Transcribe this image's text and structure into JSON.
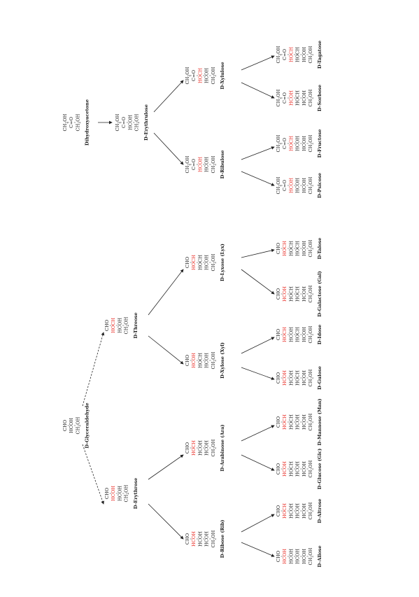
{
  "colors": {
    "text": "#1a1a1a",
    "highlight": "#e8241c",
    "arrow": "#222222"
  },
  "aldoses": {
    "glyceraldehyde": {
      "rows": [
        "CHO",
        "HCOH",
        "CH2OH"
      ],
      "red": [],
      "name": "D-Glyceraldehyde"
    },
    "erythrose": {
      "rows": [
        "CHO",
        "HCOH",
        "HCOH",
        "CH2OH"
      ],
      "red": [
        1
      ],
      "name": "D-Erythrose"
    },
    "threose": {
      "rows": [
        "CHO",
        "HOCH",
        "HCOH",
        "CH2OH"
      ],
      "red": [
        1
      ],
      "name": "D-Threose"
    },
    "ribose": {
      "rows": [
        "CHO",
        "HCOH",
        "HCOH",
        "HCOH",
        "CH2OH"
      ],
      "red": [
        1
      ],
      "name": "D-Ribose (Rib)"
    },
    "arabinose": {
      "rows": [
        "CHO",
        "HOCH",
        "HCOH",
        "HCOH",
        "CH2OH"
      ],
      "red": [
        1
      ],
      "name": "D-Arabinose (Ara)"
    },
    "xylose": {
      "rows": [
        "CHO",
        "HCOH",
        "HOCH",
        "HCOH",
        "CH2OH"
      ],
      "red": [
        1
      ],
      "name": "D-Xylose (Xyl)"
    },
    "lyxose": {
      "rows": [
        "CHO",
        "HOCH",
        "HOCH",
        "HCOH",
        "CH2OH"
      ],
      "red": [
        1
      ],
      "name": "D-Lyxose (Lyx)"
    },
    "allose": {
      "rows": [
        "CHO",
        "HCOH",
        "HCOH",
        "HCOH",
        "HCOH",
        "CH2OH"
      ],
      "red": [
        1
      ],
      "name": "D-Allose"
    },
    "altrose": {
      "rows": [
        "CHO",
        "HOCH",
        "HCOH",
        "HCOH",
        "HCOH",
        "CH2OH"
      ],
      "red": [
        1
      ],
      "name": "D-Altrose"
    },
    "glucose": {
      "rows": [
        "CHO",
        "HCOH",
        "HOCH",
        "HCOH",
        "HCOH",
        "CH2OH"
      ],
      "red": [
        1
      ],
      "name": "D-Glucose (Glc)"
    },
    "mannose": {
      "rows": [
        "CHO",
        "HOCH",
        "HOCH",
        "HCOH",
        "HCOH",
        "CH2OH"
      ],
      "red": [
        1
      ],
      "name": "D-Mannose (Man)"
    },
    "gulose": {
      "rows": [
        "CHO",
        "HCOH",
        "HCOH",
        "HOCH",
        "HCOH",
        "CH2OH"
      ],
      "red": [
        1
      ],
      "name": "D-Gulose"
    },
    "idose": {
      "rows": [
        "CHO",
        "HOCH",
        "HCOH",
        "HOCH",
        "HCOH",
        "CH2OH"
      ],
      "red": [
        1
      ],
      "name": "D-Idose"
    },
    "galactose": {
      "rows": [
        "CHO",
        "HCOH",
        "HOCH",
        "HOCH",
        "HCOH",
        "CH2OH"
      ],
      "red": [
        1
      ],
      "name": "D-Galactose (Gal)"
    },
    "talose": {
      "rows": [
        "CHO",
        "HOCH",
        "HOCH",
        "HOCH",
        "HCOH",
        "CH2OH"
      ],
      "red": [
        1
      ],
      "name": "D-Talose"
    }
  },
  "ketoses": {
    "dihydroxyacetone": {
      "rows": [
        "CH2OH",
        "C=O",
        "CH2OH"
      ],
      "red": [],
      "name": "Dihydroxyacetone"
    },
    "erythrulose": {
      "rows": [
        "CH2OH",
        "C=O",
        "HCOH",
        "CH2OH"
      ],
      "red": [],
      "name": "D-Erythrulose"
    },
    "ribulose": {
      "rows": [
        "CH2OH",
        "C=O",
        "HCOH",
        "HCOH",
        "CH2OH"
      ],
      "red": [
        2
      ],
      "name": "D-Ribulose"
    },
    "xylulose": {
      "rows": [
        "CH2OH",
        "C=O",
        "HOCH",
        "HCOH",
        "CH2OH"
      ],
      "red": [
        2
      ],
      "name": "D-Xylulose"
    },
    "psicose": {
      "rows": [
        "CH2OH",
        "C=O",
        "HCOH",
        "HCOH",
        "HCOH",
        "CH2OH"
      ],
      "red": [
        2
      ],
      "name": "D-Psicose"
    },
    "fructose": {
      "rows": [
        "CH2OH",
        "C=O",
        "HOCH",
        "HCOH",
        "HCOH",
        "CH2OH"
      ],
      "red": [
        2
      ],
      "name": "D-Fructose"
    },
    "sorbose": {
      "rows": [
        "CH2OH",
        "C=O",
        "HCOH",
        "HOCH",
        "HCOH",
        "CH2OH"
      ],
      "red": [
        2
      ],
      "name": "D-Sorbose"
    },
    "tagatose": {
      "rows": [
        "CH2OH",
        "C=O",
        "HOCH",
        "HOCH",
        "HCOH",
        "CH2OH"
      ],
      "red": [
        2
      ],
      "name": "D-Tagatose"
    }
  }
}
